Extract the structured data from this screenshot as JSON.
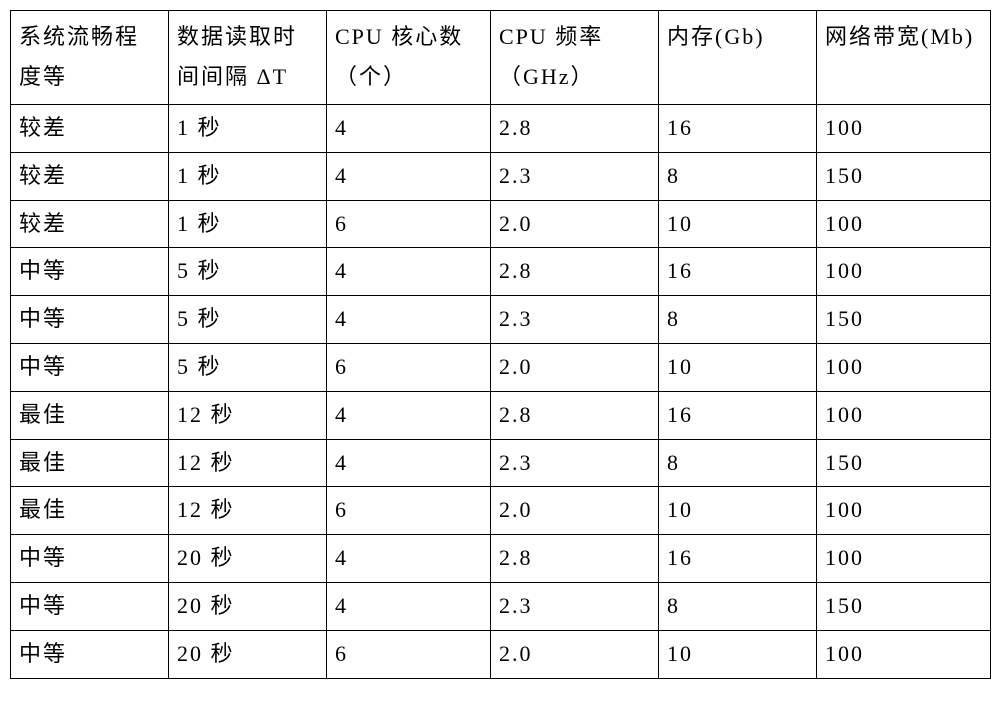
{
  "table": {
    "type": "table",
    "background_color": "#ffffff",
    "border_color": "#000000",
    "border_width": 1.5,
    "text_color": "#000000",
    "font_family": "SimSun, 宋体, serif",
    "header_fontsize": 22,
    "cell_fontsize": 22,
    "header_row_height": 94,
    "body_row_height": 46,
    "letter_spacing": 2,
    "columns": [
      {
        "label": "系统流畅程度等",
        "width": 158,
        "align": "left"
      },
      {
        "label": "数据读取时间间隔 ΔT",
        "width": 158,
        "align": "left"
      },
      {
        "label": "CPU 核心数（个）",
        "width": 164,
        "align": "left"
      },
      {
        "label": "CPU  频率（GHz）",
        "width": 168,
        "align": "left"
      },
      {
        "label": "内存(Gb)",
        "width": 158,
        "align": "left"
      },
      {
        "label": "网络带宽(Mb)",
        "width": 174,
        "align": "left"
      }
    ],
    "rows": [
      [
        "较差",
        "1 秒",
        "4",
        "2.8",
        "16",
        "100"
      ],
      [
        "较差",
        "1 秒",
        "4",
        "2.3",
        "8",
        "150"
      ],
      [
        "较差",
        "1 秒",
        "6",
        "2.0",
        "10",
        "100"
      ],
      [
        "中等",
        "5 秒",
        "4",
        "2.8",
        "16",
        "100"
      ],
      [
        "中等",
        "5 秒",
        "4",
        "2.3",
        "8",
        "150"
      ],
      [
        "中等",
        "5 秒",
        "6",
        "2.0",
        "10",
        "100"
      ],
      [
        "最佳",
        "12 秒",
        "4",
        "2.8",
        "16",
        "100"
      ],
      [
        "最佳",
        "12 秒",
        "4",
        "2.3",
        "8",
        "150"
      ],
      [
        "最佳",
        "12 秒",
        "6",
        "2.0",
        "10",
        "100"
      ],
      [
        "中等",
        "20 秒",
        "4",
        "2.8",
        "16",
        "100"
      ],
      [
        "中等",
        "20 秒",
        "4",
        "2.3",
        "8",
        "150"
      ],
      [
        "中等",
        "20 秒",
        "6",
        "2.0",
        "10",
        "100"
      ]
    ]
  }
}
